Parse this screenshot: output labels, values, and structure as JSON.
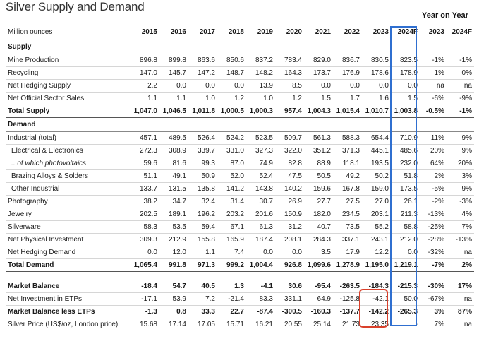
{
  "title": "Silver Supply and Demand",
  "yoy_heading": "Year on Year",
  "header": {
    "label": "Million ounces",
    "years": [
      "2015",
      "2016",
      "2017",
      "2018",
      "2019",
      "2020",
      "2021",
      "2022",
      "2023",
      "2024F"
    ],
    "yoy": [
      "2023",
      "2024F"
    ]
  },
  "supply": {
    "heading": "Supply",
    "rows": [
      {
        "label": "Mine Production",
        "values": [
          "896.8",
          "899.8",
          "863.6",
          "850.6",
          "837.2",
          "783.4",
          "829.0",
          "836.7",
          "830.5",
          "823.5"
        ],
        "yoy": [
          "-1%",
          "-1%"
        ]
      },
      {
        "label": "Recycling",
        "values": [
          "147.0",
          "145.7",
          "147.2",
          "148.7",
          "148.2",
          "164.3",
          "173.7",
          "176.9",
          "178.6",
          "178.9"
        ],
        "yoy": [
          "1%",
          "0%"
        ]
      },
      {
        "label": "Net Hedging Supply",
        "values": [
          "2.2",
          "0.0",
          "0.0",
          "0.0",
          "13.9",
          "8.5",
          "0.0",
          "0.0",
          "0.0",
          "0.0"
        ],
        "yoy": [
          "na",
          "na"
        ]
      },
      {
        "label": "Net Official Sector Sales",
        "values": [
          "1.1",
          "1.1",
          "1.0",
          "1.2",
          "1.0",
          "1.2",
          "1.5",
          "1.7",
          "1.6",
          "1.5"
        ],
        "yoy": [
          "-6%",
          "-9%"
        ]
      }
    ],
    "total": {
      "label": "Total Supply",
      "values": [
        "1,047.0",
        "1,046.5",
        "1,011.8",
        "1,000.5",
        "1,000.3",
        "957.4",
        "1,004.3",
        "1,015.4",
        "1,010.7",
        "1,003.8"
      ],
      "yoy": [
        "-0.5%",
        "-1%"
      ]
    }
  },
  "demand": {
    "heading": "Demand",
    "rows": [
      {
        "label": "Industrial (total)",
        "values": [
          "457.1",
          "489.5",
          "526.4",
          "524.2",
          "523.5",
          "509.7",
          "561.3",
          "588.3",
          "654.4",
          "710.9"
        ],
        "yoy": [
          "11%",
          "9%"
        ]
      },
      {
        "label": "Electrical & Electronics",
        "values": [
          "272.3",
          "308.9",
          "339.7",
          "331.0",
          "327.3",
          "322.0",
          "351.2",
          "371.3",
          "445.1",
          "485.6"
        ],
        "yoy": [
          "20%",
          "9%"
        ]
      },
      {
        "label": "...of which photovoltaics",
        "values": [
          "59.6",
          "81.6",
          "99.3",
          "87.0",
          "74.9",
          "82.8",
          "88.9",
          "118.1",
          "193.5",
          "232.0"
        ],
        "yoy": [
          "64%",
          "20%"
        ]
      },
      {
        "label": "Brazing Alloys & Solders",
        "values": [
          "51.1",
          "49.1",
          "50.9",
          "52.0",
          "52.4",
          "47.5",
          "50.5",
          "49.2",
          "50.2",
          "51.8"
        ],
        "yoy": [
          "2%",
          "3%"
        ]
      },
      {
        "label": "Other Industrial",
        "values": [
          "133.7",
          "131.5",
          "135.8",
          "141.2",
          "143.8",
          "140.2",
          "159.6",
          "167.8",
          "159.0",
          "173.5"
        ],
        "yoy": [
          "-5%",
          "9%"
        ]
      },
      {
        "label": "Photography",
        "values": [
          "38.2",
          "34.7",
          "32.4",
          "31.4",
          "30.7",
          "26.9",
          "27.7",
          "27.5",
          "27.0",
          "26.1"
        ],
        "yoy": [
          "-2%",
          "-3%"
        ]
      },
      {
        "label": "Jewelry",
        "values": [
          "202.5",
          "189.1",
          "196.2",
          "203.2",
          "201.6",
          "150.9",
          "182.0",
          "234.5",
          "203.1",
          "211.3"
        ],
        "yoy": [
          "-13%",
          "4%"
        ]
      },
      {
        "label": "Silverware",
        "values": [
          "58.3",
          "53.5",
          "59.4",
          "67.1",
          "61.3",
          "31.2",
          "40.7",
          "73.5",
          "55.2",
          "58.8"
        ],
        "yoy": [
          "-25%",
          "7%"
        ]
      },
      {
        "label": "Net Physical Investment",
        "values": [
          "309.3",
          "212.9",
          "155.8",
          "165.9",
          "187.4",
          "208.1",
          "284.3",
          "337.1",
          "243.1",
          "212.0"
        ],
        "yoy": [
          "-28%",
          "-13%"
        ]
      },
      {
        "label": "Net Hedging Demand",
        "values": [
          "0.0",
          "12.0",
          "1.1",
          "7.4",
          "0.0",
          "0.0",
          "3.5",
          "17.9",
          "12.2",
          "0.0"
        ],
        "yoy": [
          "-32%",
          "na"
        ]
      }
    ],
    "total": {
      "label": "Total Demand",
      "values": [
        "1,065.4",
        "991.8",
        "971.3",
        "999.2",
        "1,004.4",
        "926.8",
        "1,099.6",
        "1,278.9",
        "1,195.0",
        "1,219.1"
      ],
      "yoy": [
        "-7%",
        "2%"
      ]
    }
  },
  "balance": {
    "rows": [
      {
        "label": "Market Balance",
        "values": [
          "-18.4",
          "54.7",
          "40.5",
          "1.3",
          "-4.1",
          "30.6",
          "-95.4",
          "-263.5",
          "-184.3",
          "-215.3"
        ],
        "yoy": [
          "-30%",
          "17%"
        ]
      },
      {
        "label": "Net Investment in ETPs",
        "values": [
          "-17.1",
          "53.9",
          "7.2",
          "-21.4",
          "83.3",
          "331.1",
          "64.9",
          "-125.8",
          "-42.1",
          "50.0"
        ],
        "yoy": [
          "-67%",
          "na"
        ]
      },
      {
        "label": "Market Balance less ETPs",
        "values": [
          "-1.3",
          "0.8",
          "33.3",
          "22.7",
          "-87.4",
          "-300.5",
          "-160.3",
          "-137.7",
          "-142.2",
          "-265.3"
        ],
        "yoy": [
          "3%",
          "87%"
        ]
      },
      {
        "label": "Silver Price (US$/oz, London price)",
        "values": [
          "15.68",
          "17.14",
          "17.05",
          "15.71",
          "16.21",
          "20.55",
          "25.14",
          "21.73",
          "23.35",
          "-"
        ],
        "yoy": [
          "7%",
          "na"
        ]
      }
    ]
  },
  "colors": {
    "highlight_2024": "#2f6fd0",
    "highlight_2023": "#d9402b"
  }
}
